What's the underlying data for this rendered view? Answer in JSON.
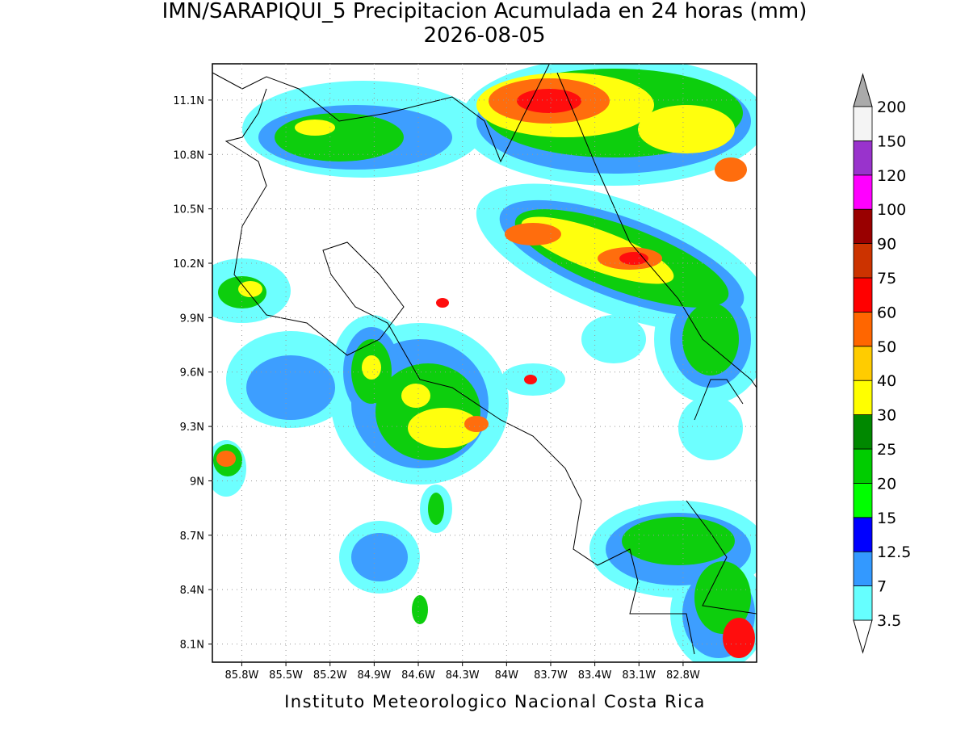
{
  "map": {
    "title": "IMN/SARAPIQUI_5 Precipitacion Acumulada en 24 horas (mm)",
    "subtitle": "2026-08-05",
    "footer": "Instituto Meteorologico Nacional Costa Rica",
    "lat_lim": [
      8.0,
      11.3
    ],
    "lon_lim": [
      86.0,
      82.3
    ],
    "lat_ticks": [
      {
        "value": 11.1,
        "label": "11.1N"
      },
      {
        "value": 10.8,
        "label": "10.8N"
      },
      {
        "value": 10.5,
        "label": "10.5N"
      },
      {
        "value": 10.2,
        "label": "10.2N"
      },
      {
        "value": 9.9,
        "label": "9.9N"
      },
      {
        "value": 9.6,
        "label": "9.6N"
      },
      {
        "value": 9.3,
        "label": "9.3N"
      },
      {
        "value": 9.0,
        "label": "9N"
      },
      {
        "value": 8.7,
        "label": "8.7N"
      },
      {
        "value": 8.4,
        "label": "8.4N"
      },
      {
        "value": 8.1,
        "label": "8.1N"
      }
    ],
    "lon_ticks": [
      {
        "value": 85.8,
        "label": "85.8W"
      },
      {
        "value": 85.5,
        "label": "85.5W"
      },
      {
        "value": 85.2,
        "label": "85.2W"
      },
      {
        "value": 84.9,
        "label": "84.9W"
      },
      {
        "value": 84.6,
        "label": "84.6W"
      },
      {
        "value": 84.3,
        "label": "84.3W"
      },
      {
        "value": 84.0,
        "label": "84W"
      },
      {
        "value": 83.7,
        "label": "83.7W"
      },
      {
        "value": 83.4,
        "label": "83.4W"
      },
      {
        "value": 83.1,
        "label": "83.1W"
      },
      {
        "value": 82.8,
        "label": "82.8W"
      }
    ],
    "grid": true,
    "colorbar": {
      "levels": [
        3.5,
        7,
        12.5,
        15,
        20,
        25,
        30,
        40,
        50,
        60,
        75,
        90,
        100,
        120,
        150,
        200
      ],
      "colors": [
        "#66ffff",
        "#3399ff",
        "#0000ff",
        "#00ff00",
        "#00cc00",
        "#008800",
        "#ffff00",
        "#ffcc00",
        "#ff6600",
        "#ff0000",
        "#cc3300",
        "#990000",
        "#ff00ff",
        "#9933cc",
        "#f4f4f4"
      ],
      "under_color": "#ffffff",
      "over_color": "#aaaaaa"
    }
  }
}
